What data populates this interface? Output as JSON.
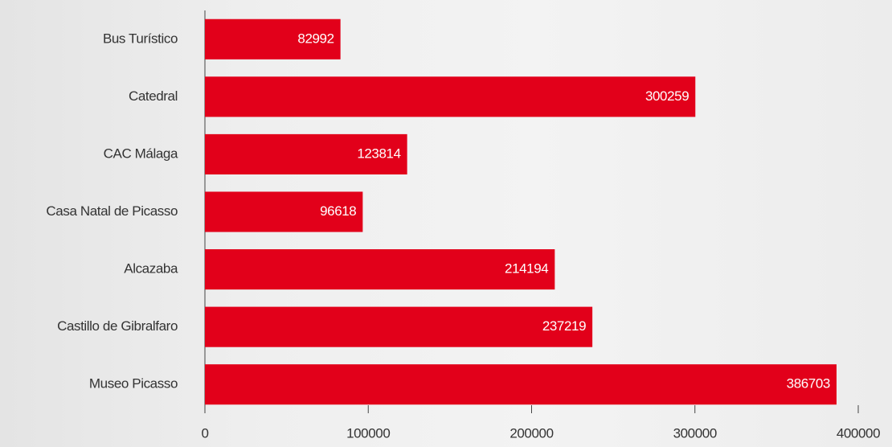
{
  "chart_data": {
    "type": "bar",
    "orientation": "horizontal",
    "categories": [
      "Bus Turístico",
      "Catedral",
      "CAC Málaga",
      "Casa Natal de Picasso",
      "Alcazaba",
      "Castillo de Gibralfaro",
      "Museo Picasso"
    ],
    "values": [
      82992,
      300259,
      123814,
      96618,
      214194,
      237219,
      386703
    ],
    "color": "#e2001a",
    "xlim": [
      0,
      400000
    ],
    "xticks": [
      0,
      100000,
      200000,
      300000,
      400000
    ]
  }
}
